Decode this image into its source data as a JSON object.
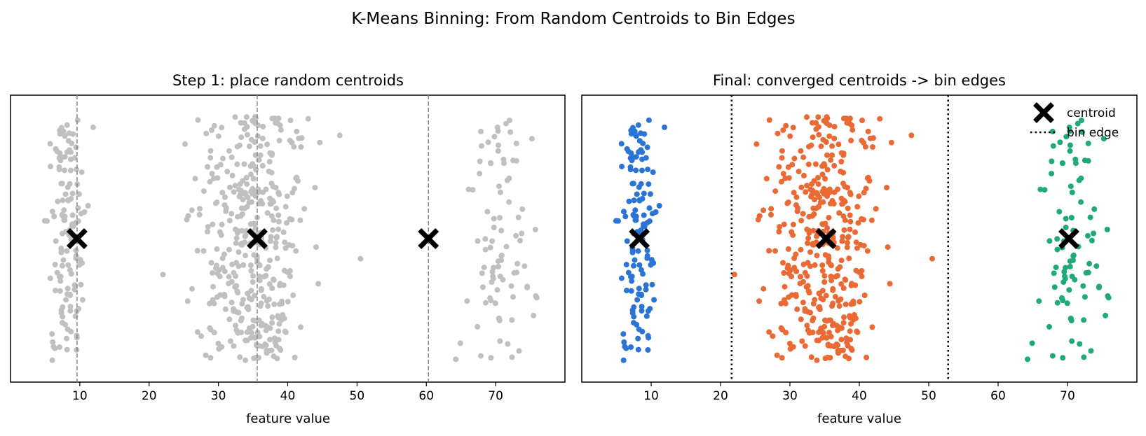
{
  "figure": {
    "suptitle": "K-Means Binning: From Random Centroids to Bin Edges"
  },
  "legend": {
    "centroid_label": "centroid",
    "edge_label": "bin edge",
    "location": "upper-right"
  },
  "chart_data": [
    {
      "type": "scatter",
      "title": "Step 1: place random centroids",
      "xlabel": "feature value",
      "ylabel": "",
      "xlim": [
        0,
        80
      ],
      "ylim": [
        -1,
        1
      ],
      "xticks": [
        10,
        20,
        30,
        40,
        50,
        60,
        70
      ],
      "yticks_visible": false,
      "grid": false,
      "point_color": "#c0c0c0",
      "centroids": [
        9.6,
        35.6,
        60.3
      ],
      "centroid_lines": [
        9.6,
        35.6,
        60.3
      ],
      "centroid_line_style": "dashed",
      "centroid_color": "#000000",
      "clusters": [
        {
          "center": 8.3,
          "spread": 1.4,
          "count": 130,
          "min": 4.5,
          "max": 12.0
        },
        {
          "center": 35.0,
          "spread": 3.8,
          "count": 400,
          "min": 25.0,
          "max": 47.5
        },
        {
          "center": 70.3,
          "spread": 2.6,
          "count": 90,
          "min": 63.0,
          "max": 76.0
        }
      ],
      "outliers": [
        {
          "x": 22.0,
          "y": -0.25
        },
        {
          "x": 50.5,
          "y": -0.14
        },
        {
          "x": 47.5,
          "y": 0.72
        }
      ]
    },
    {
      "type": "scatter",
      "title": "Final: converged centroids -> bin edges",
      "xlabel": "feature value",
      "ylabel": "",
      "xlim": [
        0,
        80
      ],
      "ylim": [
        -1,
        1
      ],
      "xticks": [
        10,
        20,
        30,
        40,
        50,
        60,
        70
      ],
      "yticks_visible": false,
      "grid": false,
      "centroids": [
        8.3,
        35.2,
        70.2
      ],
      "bin_edges": [
        21.6,
        52.8
      ],
      "bin_edge_style": "dotted",
      "centroid_color": "#000000",
      "legend": true,
      "clusters": [
        {
          "center": 8.3,
          "spread": 1.4,
          "count": 130,
          "min": 4.5,
          "max": 12.0,
          "color": "#2a74d6"
        },
        {
          "center": 35.0,
          "spread": 3.8,
          "count": 400,
          "min": 25.0,
          "max": 47.5,
          "color": "#ea6a35"
        },
        {
          "center": 70.3,
          "spread": 2.6,
          "count": 90,
          "min": 63.0,
          "max": 76.0,
          "color": "#1fa97d"
        }
      ],
      "outliers": [
        {
          "x": 22.0,
          "y": -0.25,
          "color": "#ea6a35"
        },
        {
          "x": 50.5,
          "y": -0.14,
          "color": "#ea6a35"
        },
        {
          "x": 47.5,
          "y": 0.72,
          "color": "#ea6a35"
        }
      ]
    }
  ]
}
